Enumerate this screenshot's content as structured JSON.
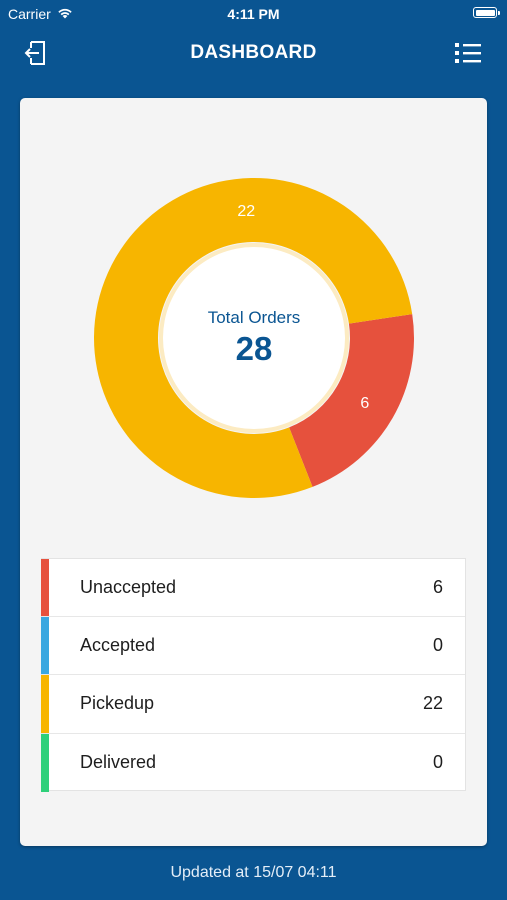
{
  "status_bar": {
    "carrier": "Carrier",
    "time": "4:11 PM"
  },
  "header": {
    "title": "DASHBOARD",
    "left_icon": "logout-icon",
    "right_icon": "list-menu-icon"
  },
  "chart_data": {
    "type": "pie",
    "style": "donut",
    "center_label": "Total Orders",
    "center_value": "28",
    "categories": [
      "Unaccepted",
      "Accepted",
      "Pickedup",
      "Delivered"
    ],
    "values": [
      6,
      0,
      22,
      0
    ],
    "colors": [
      "#e6513d",
      "#3aa7e0",
      "#f7b500",
      "#2ed07a"
    ]
  },
  "legend": [
    {
      "label": "Unaccepted",
      "value": "6",
      "color": "#e6513d"
    },
    {
      "label": "Accepted",
      "value": "0",
      "color": "#3aa7e0"
    },
    {
      "label": "Pickedup",
      "value": "22",
      "color": "#f7b500"
    },
    {
      "label": "Delivered",
      "value": "0",
      "color": "#2ed07a"
    }
  ],
  "footer": {
    "updated_text": "Updated at 15/07 04:11"
  },
  "colors": {
    "background": "#0a5592",
    "card": "#f4f4f4",
    "accent_text": "#0a5592"
  }
}
